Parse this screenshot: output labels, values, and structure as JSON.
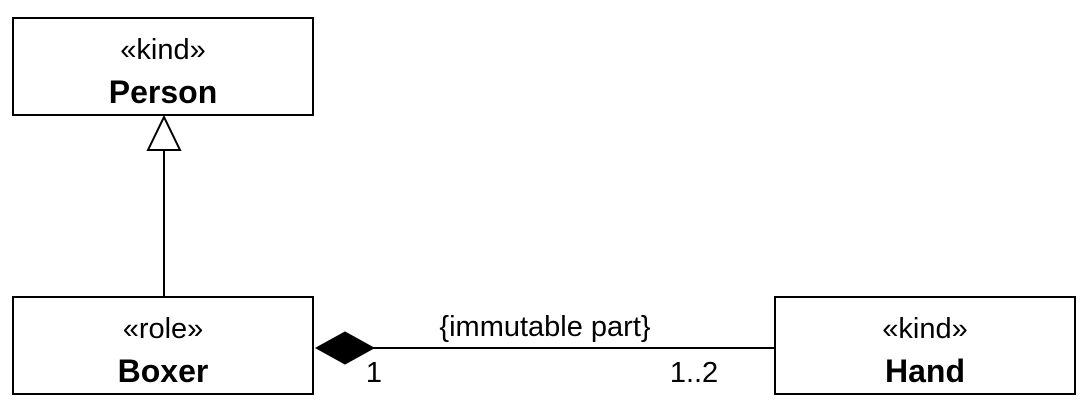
{
  "diagram": {
    "classes": {
      "person": {
        "stereotype": "«kind»",
        "name": "Person"
      },
      "boxer": {
        "stereotype": "«role»",
        "name": "Boxer"
      },
      "hand": {
        "stereotype": "«kind»",
        "name": "Hand"
      }
    },
    "relations": {
      "generalization": {
        "from": "Boxer",
        "to": "Person",
        "type": "generalization"
      },
      "composition": {
        "whole": "Boxer",
        "part": "Hand",
        "type": "composition",
        "constraint": "{immutable part}",
        "whole_multiplicity": "1",
        "part_multiplicity": "1..2"
      }
    }
  },
  "colors": {
    "stroke": "#000000",
    "fill": "#ffffff",
    "diamond": "#000000"
  }
}
